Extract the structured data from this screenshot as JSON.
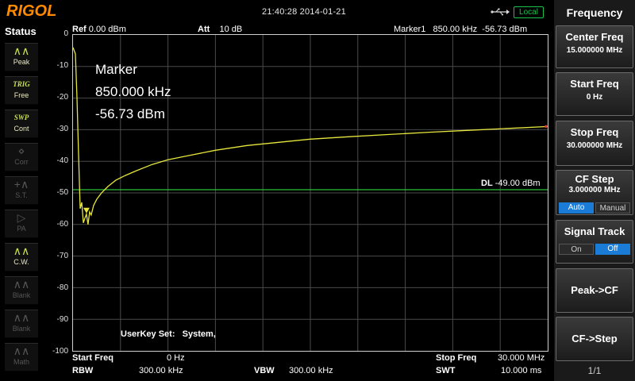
{
  "header": {
    "brand": "RIGOL",
    "datetime": "21:40:28 2014-01-21",
    "mode_badge": "Local"
  },
  "status": {
    "title": "Status",
    "items": [
      {
        "icon": "∧∧",
        "label": "Peak",
        "state": "on"
      },
      {
        "icon": "TRIG",
        "label": "Free",
        "state": "on"
      },
      {
        "icon": "SWP",
        "label": "Cont",
        "state": "on"
      },
      {
        "icon": "⋄",
        "label": "Corr",
        "state": "off"
      },
      {
        "icon": "+∧",
        "label": "S.T.",
        "state": "off"
      },
      {
        "icon": "▷",
        "label": "PA",
        "state": "off"
      },
      {
        "icon": "∧∧",
        "label": "C.W.",
        "state": "on"
      },
      {
        "icon": "∧∧",
        "label": "Blank",
        "state": "off"
      },
      {
        "icon": "∧∧",
        "label": "Blank",
        "state": "off"
      },
      {
        "icon": "∧∧",
        "label": "Math",
        "state": "off"
      }
    ]
  },
  "plot_header": {
    "ref_label": "Ref",
    "ref_value": "0.00 dBm",
    "att_label": "Att",
    "att_value": "10 dB",
    "marker_label": "Marker1",
    "marker_freq": "850.00 kHz",
    "marker_level": "-56.73 dBm"
  },
  "marker_box": {
    "title": "Marker",
    "freq": "850.000 kHz",
    "level": "-56.73 dBm"
  },
  "display_line": {
    "label": "DL",
    "value": "-49.00 dBm",
    "level": -49
  },
  "userkey": {
    "label": "UserKey Set:",
    "value": "System,"
  },
  "bottom": {
    "start_label": "Start Freq",
    "start_value": "0 Hz",
    "stop_label": "Stop Freq",
    "stop_value": "30.000 MHz",
    "rbw_label": "RBW",
    "rbw_value": "300.00 kHz",
    "vbw_label": "VBW",
    "vbw_value": "300.00 kHz",
    "swt_label": "SWT",
    "swt_value": "10.000 ms"
  },
  "menu": {
    "title": "Frequency",
    "center": {
      "label": "Center Freq",
      "value": "15.000000 MHz"
    },
    "start": {
      "label": "Start Freq",
      "value": "0 Hz"
    },
    "stop": {
      "label": "Stop Freq",
      "value": "30.000000 MHz"
    },
    "cfstep": {
      "label": "CF Step",
      "value": "3.000000 MHz",
      "opt_a": "Auto",
      "opt_b": "Manual"
    },
    "track": {
      "label": "Signal Track",
      "opt_a": "On",
      "opt_b": "Off"
    },
    "peak_cf": "Peak->CF",
    "cf_step": "CF->Step",
    "page": "1/1"
  },
  "chart_data": {
    "type": "line",
    "xlabel": "",
    "ylabel": "",
    "xlim": [
      0,
      30
    ],
    "ylim": [
      -100,
      0
    ],
    "yticks": [
      "0",
      "-10",
      "-20",
      "-30",
      "-40",
      "-50",
      "-60",
      "-70",
      "-80",
      "-90",
      "-100"
    ],
    "trace_color": "#e6e63c",
    "dl_color": "#2fbf3a",
    "series": [
      {
        "x": [
          0.0,
          0.15,
          0.25,
          0.35,
          0.45,
          0.55,
          0.65,
          0.75,
          0.85,
          0.95,
          1.05,
          1.15,
          1.3,
          1.5,
          1.8,
          2.2,
          2.7,
          3.3,
          4.0,
          5.0,
          6.0,
          7.5,
          9.0,
          11.0,
          13.0,
          15.0,
          17.5,
          20.0,
          22.5,
          25.0,
          27.5,
          30.0
        ],
        "y": [
          -4.0,
          -6.0,
          -20.0,
          -38.0,
          -55.0,
          -53.0,
          -59.5,
          -58.0,
          -56.7,
          -60.0,
          -56.0,
          -57.0,
          -54.0,
          -52.0,
          -50.0,
          -48.0,
          -46.0,
          -44.5,
          -43.0,
          -41.0,
          -39.5,
          -38.0,
          -36.5,
          -35.0,
          -34.0,
          -33.0,
          -32.2,
          -31.5,
          -30.8,
          -30.2,
          -29.6,
          -29.0
        ]
      }
    ]
  }
}
